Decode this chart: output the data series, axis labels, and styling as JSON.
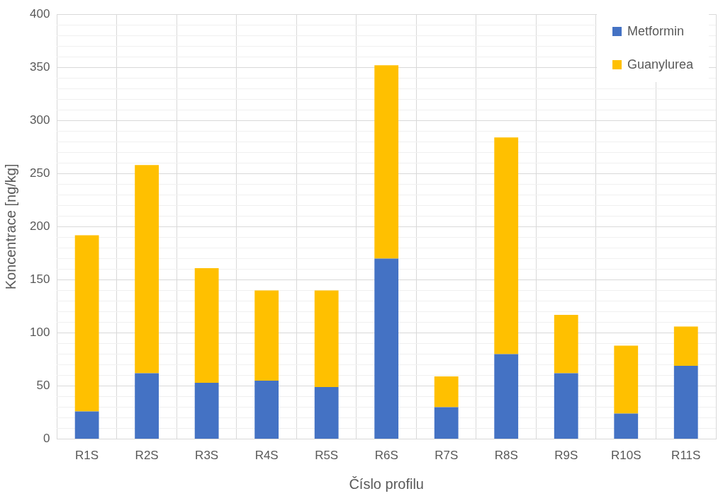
{
  "chart_data": {
    "type": "bar",
    "stacked": true,
    "xlabel": "Číslo profilu",
    "ylabel": "Koncentrace [ng/kg]",
    "categories": [
      "R1S",
      "R2S",
      "R3S",
      "R4S",
      "R5S",
      "R6S",
      "R7S",
      "R8S",
      "R9S",
      "R10S",
      "R11S"
    ],
    "series": [
      {
        "name": "Metformin",
        "color": "#4472c4",
        "values": [
          26,
          62,
          53,
          55,
          49,
          170,
          30,
          80,
          62,
          24,
          69
        ]
      },
      {
        "name": "Guanylurea",
        "color": "#ffc000",
        "values": [
          166,
          196,
          108,
          85,
          91,
          182,
          29,
          204,
          55,
          64,
          37
        ]
      }
    ],
    "ylim": [
      0,
      400
    ],
    "yticks": [
      0,
      {
        "value": 10,
        "label": null
      },
      {
        "value": 20,
        "label": null
      },
      {
        "value": 30,
        "label": null
      },
      {
        "value": 40,
        "label": null
      },
      50,
      {
        "value": 60,
        "label": null
      },
      {
        "value": 70,
        "label": null
      },
      {
        "value": 80,
        "label": null
      },
      {
        "value": 90,
        "label": null
      },
      100,
      {
        "value": 110,
        "label": null
      },
      {
        "value": 120,
        "label": null
      },
      {
        "value": 130,
        "label": null
      },
      {
        "value": 140,
        "label": null
      },
      150,
      {
        "value": 160,
        "label": null
      },
      {
        "value": 170,
        "label": null
      },
      {
        "value": 180,
        "label": null
      },
      {
        "value": 190,
        "label": null
      },
      200,
      {
        "value": 210,
        "label": null
      },
      {
        "value": 220,
        "label": null
      },
      {
        "value": 230,
        "label": null
      },
      {
        "value": 240,
        "label": null
      },
      250,
      {
        "value": 260,
        "label": null
      },
      {
        "value": 270,
        "label": null
      },
      {
        "value": 280,
        "label": null
      },
      {
        "value": 290,
        "label": null
      },
      300,
      {
        "value": 310,
        "label": null
      },
      {
        "value": 320,
        "label": null
      },
      {
        "value": 330,
        "label": null
      },
      {
        "value": 340,
        "label": null
      },
      350,
      {
        "value": 360,
        "label": null
      },
      {
        "value": 370,
        "label": null
      },
      {
        "value": 380,
        "label": null
      },
      {
        "value": 390,
        "label": null
      },
      400
    ],
    "grid": true,
    "legend": "top right"
  }
}
